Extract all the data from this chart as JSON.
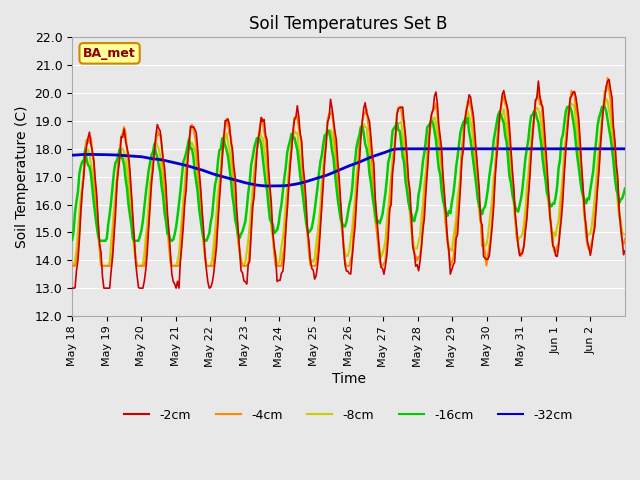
{
  "title": "Soil Temperatures Set B",
  "xlabel": "Time",
  "ylabel": "Soil Temperature (C)",
  "ylim": [
    12.0,
    22.0
  ],
  "yticks": [
    12.0,
    13.0,
    14.0,
    15.0,
    16.0,
    17.0,
    18.0,
    19.0,
    20.0,
    21.0,
    22.0
  ],
  "bg_color": "#e8e8e8",
  "grid_color": "#ffffff",
  "line_colors": {
    "-2cm": "#cc0000",
    "-4cm": "#ff8800",
    "-8cm": "#cccc00",
    "-16cm": "#00cc00",
    "-32cm": "#0000cc"
  },
  "line_widths": {
    "-2cm": 1.2,
    "-4cm": 1.5,
    "-8cm": 1.5,
    "-16cm": 1.8,
    "-32cm": 2.0
  },
  "legend_labels": [
    "-2cm",
    "-4cm",
    "-8cm",
    "-16cm",
    "-32cm"
  ],
  "annotation_text": "BA_met",
  "annotation_bg": "#ffff99",
  "annotation_border": "#cc8800",
  "xtick_labels": [
    "May 18",
    "May 19",
    "May 20",
    "May 21",
    "May 22",
    "May 23",
    "May 24",
    "May 25",
    "May 26",
    "May 27",
    "May 28",
    "May 29",
    "May 30",
    "May 31",
    "Jun 1",
    "Jun 2"
  ],
  "n_days": 16
}
